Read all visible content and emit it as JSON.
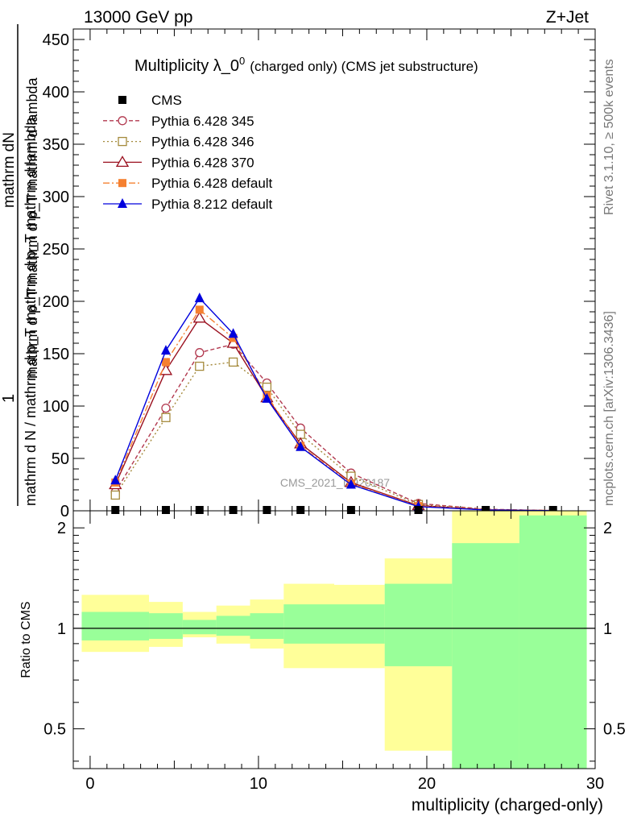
{
  "header": {
    "left": "13000 GeV pp",
    "right": "Z+Jet"
  },
  "side_text": {
    "rivet": "Rivet 3.1.10, ≥ 500k events",
    "mcplots": "mcplots.cern.ch [arXiv:1306.3436]"
  },
  "watermark": "CMS_2021_I1920187",
  "chart_data": [
    {
      "type": "line",
      "title": "Multiplicity λ_0",
      "title_sup": "0",
      "subtitle": "(charged only) (CMS jet substructure)",
      "ylabel_num": "mathrm d²N",
      "ylabel_num_top": "mathrm dN",
      "ylabel_den_top": "mathrm d p_T mathrm d p_T mathrm d lambda",
      "ylabel_prefix": "1",
      "ylabel_den": "mathrm d N / mathrm d p_T mathrm d p_T mathrm d lambda",
      "xlim": [
        -1,
        30
      ],
      "ylim": [
        0,
        460
      ],
      "yticks": [
        0,
        50,
        100,
        150,
        200,
        250,
        300,
        350,
        400,
        450
      ],
      "legend": [
        {
          "name": "CMS",
          "color": "#000000",
          "marker": "square-filled",
          "dash": "none"
        },
        {
          "name": "Pythia 6.428 345",
          "color": "#b2394f",
          "marker": "circle-open",
          "dash": "5,3"
        },
        {
          "name": "Pythia 6.428 346",
          "color": "#a58a3c",
          "marker": "square-open",
          "dash": "2,3"
        },
        {
          "name": "Pythia 6.428 370",
          "color": "#9a0f1e",
          "marker": "triangle-open",
          "dash": "none"
        },
        {
          "name": "Pythia 6.428 default",
          "color": "#f58030",
          "marker": "square-filled",
          "dash": "8,3,2,3"
        },
        {
          "name": "Pythia 8.212 default",
          "color": "#0000dd",
          "marker": "triangle-filled",
          "dash": "none"
        }
      ],
      "x": [
        1.5,
        4.5,
        6.5,
        8.5,
        10.5,
        12.5,
        15.5,
        19.5,
        23.5,
        27.5
      ],
      "cms_values": [
        0,
        0,
        0,
        0,
        0,
        0,
        0,
        0,
        0,
        0
      ],
      "series": [
        {
          "name": "Pythia 6.428 345",
          "values": [
            18,
            98,
            151,
            159,
            122,
            79,
            36,
            7,
            1.5,
            0.2
          ]
        },
        {
          "name": "Pythia 6.428 346",
          "values": [
            15,
            89,
            138,
            142,
            118,
            73,
            33,
            6,
            1.2,
            0.2
          ]
        },
        {
          "name": "Pythia 6.428 370",
          "values": [
            25,
            134,
            184,
            160,
            108,
            64,
            27,
            5,
            1,
            0.2
          ]
        },
        {
          "name": "Pythia 6.428 default",
          "values": [
            27,
            142,
            192,
            165,
            110,
            62,
            26,
            4.5,
            1,
            0.2
          ]
        },
        {
          "name": "Pythia 8.212 default",
          "values": [
            29,
            153,
            203,
            169,
            107,
            61,
            25,
            4,
            0.8,
            0.1
          ]
        }
      ]
    },
    {
      "type": "area",
      "ylabel": "Ratio to CMS",
      "xlabel": "multiplicity (charged-only)",
      "xlim": [
        -1,
        30
      ],
      "xticks": [
        0,
        10,
        20,
        30
      ],
      "ylim": [
        0.38,
        2.25
      ],
      "yticks": [
        0.5,
        1,
        2
      ],
      "bins": [
        {
          "x0": -0.5,
          "x1": 3.5,
          "stat": [
            0.92,
            1.12
          ],
          "total": [
            0.85,
            1.26
          ]
        },
        {
          "x0": 3.5,
          "x1": 5.5,
          "stat": [
            0.93,
            1.11
          ],
          "total": [
            0.88,
            1.2
          ]
        },
        {
          "x0": 5.5,
          "x1": 7.5,
          "stat": [
            0.96,
            1.06
          ],
          "total": [
            0.94,
            1.12
          ]
        },
        {
          "x0": 7.5,
          "x1": 9.5,
          "stat": [
            0.95,
            1.09
          ],
          "total": [
            0.9,
            1.17
          ]
        },
        {
          "x0": 9.5,
          "x1": 11.5,
          "stat": [
            0.93,
            1.11
          ],
          "total": [
            0.87,
            1.22
          ]
        },
        {
          "x0": 11.5,
          "x1": 14.5,
          "stat": [
            0.9,
            1.18
          ],
          "total": [
            0.76,
            1.36
          ]
        },
        {
          "x0": 14.5,
          "x1": 17.5,
          "stat": [
            0.9,
            1.18
          ],
          "total": [
            0.76,
            1.35
          ]
        },
        {
          "x0": 17.5,
          "x1": 21.5,
          "stat": [
            0.77,
            1.36
          ],
          "total": [
            0.43,
            1.62
          ]
        },
        {
          "x0": 21.5,
          "x1": 25.5,
          "stat": [
            0.38,
            1.8
          ],
          "total": [
            0.38,
            2.25
          ]
        },
        {
          "x0": 25.5,
          "x1": 29.5,
          "stat": [
            0.38,
            2.18
          ],
          "total": [
            0.38,
            2.25
          ]
        }
      ]
    }
  ]
}
